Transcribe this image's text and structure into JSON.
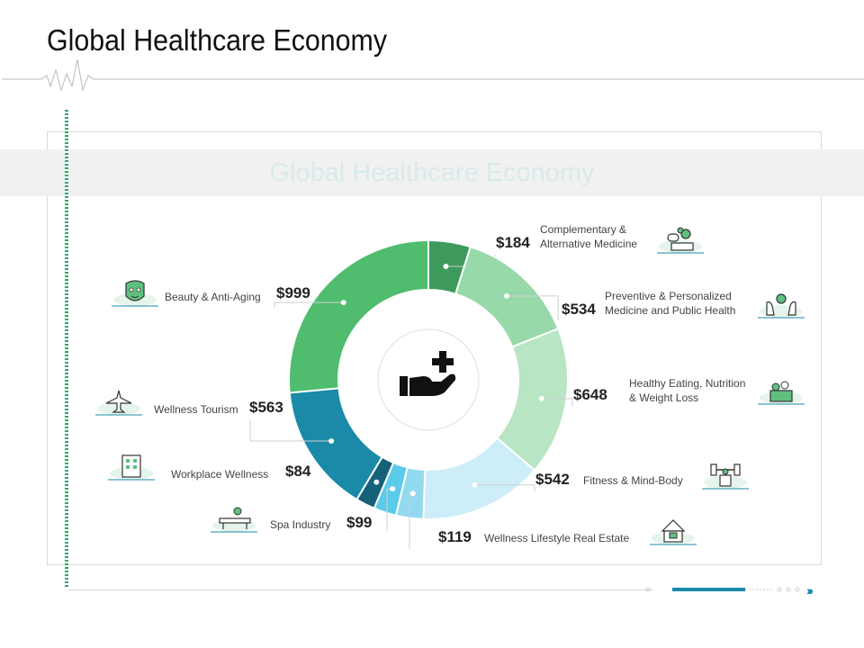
{
  "header": {
    "title": "Global Healthcare Economy"
  },
  "banner": {
    "title": "Global Healthcare Economy"
  },
  "colors": {
    "accent": "#1a8aa8",
    "green": "#2faa6c"
  },
  "center_icon": "hand-with-medical-cross-icon",
  "chart_data": {
    "type": "pie",
    "donut": true,
    "title": "Global Healthcare Economy",
    "unit": "$",
    "categories": [
      "Complementary & Alternative Medicine",
      "Preventive & Personalized Medicine and Public Health",
      "Healthy Eating, Nutrition & Weight Loss",
      "Fitness & Mind-Body",
      "Wellness Lifestyle Real Estate",
      "Spa Industry",
      "Workplace Wellness",
      "Wellness Tourism",
      "Beauty & Anti-Aging"
    ],
    "values": [
      184,
      534,
      648,
      542,
      119,
      99,
      84,
      563,
      999
    ],
    "value_labels": [
      "$184",
      "$534",
      "$648",
      "$542",
      "$119",
      "$99",
      "$84",
      "$563",
      "$999"
    ],
    "colors": [
      "#3e9a5c",
      "#98d9a9",
      "#b8e5c3",
      "#cdeef8",
      "#92daef",
      "#5bcbea",
      "#15617a",
      "#1a8aa8",
      "#4fbc6e"
    ],
    "icons": [
      "pills-icon",
      "hands-virus-icon",
      "fruit-basket-icon",
      "dumbbell-icon",
      "house-icon",
      "massage-icon",
      "office-building-icon",
      "airplane-icon",
      "face-mask-icon"
    ],
    "label_lines": [
      [
        "Complementary &",
        "Alternative Medicine"
      ],
      [
        "Preventive & Personalized",
        "Medicine and Public Health"
      ],
      [
        "Healthy Eating, Nutrition",
        "& Weight Loss"
      ],
      [
        "Fitness & Mind-Body"
      ],
      [
        "Wellness Lifestyle Real Estate"
      ],
      [
        "Spa Industry"
      ],
      [
        "Workplace Wellness"
      ],
      [
        "Wellness Tourism"
      ],
      [
        "Beauty & Anti-Aging"
      ]
    ]
  }
}
